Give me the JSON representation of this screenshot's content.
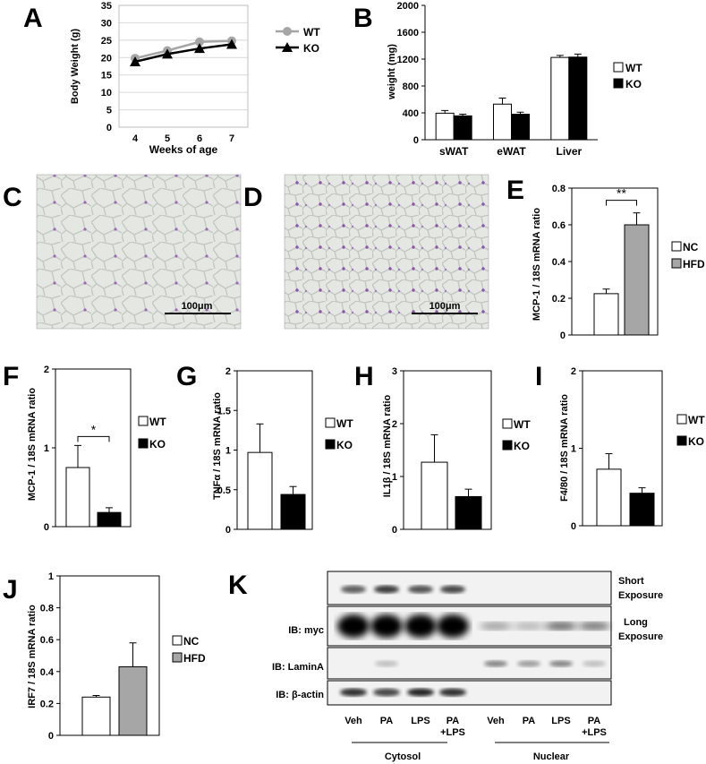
{
  "colors": {
    "wt_line": "#a6a6a6",
    "ko_line": "#000000",
    "wt_bar": "#ffffff",
    "ko_bar": "#000000",
    "hfd_bar": "#a6a6a6",
    "histology_bg": "#e4e7e2",
    "histology_stain": "#8a56a8"
  },
  "panel_labels": {
    "A": "A",
    "B": "B",
    "C": "C",
    "D": "D",
    "E": "E",
    "F": "F",
    "G": "G",
    "H": "H",
    "I": "I",
    "J": "J",
    "K": "K"
  },
  "chart_data": [
    {
      "id": "A",
      "type": "line",
      "x": [
        4,
        5,
        6,
        7
      ],
      "xticks": [
        "4",
        "5",
        "6",
        "7"
      ],
      "xlabel": "Weeks of age",
      "ylabel": "Body Weight (g)",
      "ylim": [
        0,
        35
      ],
      "yticks": [
        "0",
        "5",
        "10",
        "15",
        "20",
        "25",
        "30",
        "35"
      ],
      "grid": true,
      "legend": "right",
      "series": [
        {
          "name": "WT",
          "marker": "circle",
          "color": "#a6a6a6",
          "values": [
            19.8,
            22.0,
            24.5,
            24.8
          ]
        },
        {
          "name": "KO",
          "marker": "triangle",
          "color": "#000000",
          "values": [
            18.8,
            21.0,
            22.6,
            23.8
          ]
        }
      ]
    },
    {
      "id": "B",
      "type": "bar",
      "categories": [
        "sWAT",
        "eWAT",
        "Liver"
      ],
      "ylabel": "weight (mg)",
      "ylim": [
        0,
        2000
      ],
      "yticks": [
        "0",
        "400",
        "800",
        "1200",
        "1600",
        "2000"
      ],
      "legend": "right",
      "series": [
        {
          "name": "WT",
          "color": "#ffffff",
          "values": [
            395,
            530,
            1225
          ],
          "errors": [
            40,
            90,
            30
          ]
        },
        {
          "name": "KO",
          "color": "#000000",
          "values": [
            355,
            380,
            1230
          ],
          "errors": [
            25,
            30,
            45
          ]
        }
      ]
    },
    {
      "id": "E",
      "type": "bar",
      "categories": [
        ""
      ],
      "ylabel": "MCP-1 / 18S mRNA ratio",
      "ylim": [
        0,
        0.8
      ],
      "yticks": [
        "0",
        "0.2",
        "0.4",
        "0.6",
        "0.8"
      ],
      "significance": "**",
      "legend": "right",
      "series": [
        {
          "name": "NC",
          "color": "#ffffff",
          "values": [
            0.225
          ],
          "errors": [
            0.025
          ]
        },
        {
          "name": "HFD",
          "color": "#a6a6a6",
          "values": [
            0.6
          ],
          "errors": [
            0.065
          ]
        }
      ]
    },
    {
      "id": "F",
      "type": "bar",
      "categories": [
        ""
      ],
      "ylabel": "MCP-1 / 18S mRNA ratio",
      "ylim": [
        0,
        2
      ],
      "yticks": [
        "0",
        "1",
        "2"
      ],
      "significance": "*",
      "legend": "right",
      "series": [
        {
          "name": "WT",
          "color": "#ffffff",
          "values": [
            0.75
          ],
          "errors": [
            0.28
          ]
        },
        {
          "name": "KO",
          "color": "#000000",
          "values": [
            0.18
          ],
          "errors": [
            0.06
          ]
        }
      ]
    },
    {
      "id": "G",
      "type": "bar",
      "categories": [
        ""
      ],
      "ylabel": "TNFα / 18S mRNA ratio",
      "ylim": [
        0,
        2
      ],
      "yticks": [
        "0",
        "0.5",
        "1",
        "1.5",
        "2"
      ],
      "legend": "right",
      "series": [
        {
          "name": "WT",
          "color": "#ffffff",
          "values": [
            0.97
          ],
          "errors": [
            0.36
          ]
        },
        {
          "name": "KO",
          "color": "#000000",
          "values": [
            0.44
          ],
          "errors": [
            0.1
          ]
        }
      ]
    },
    {
      "id": "H",
      "type": "bar",
      "categories": [
        ""
      ],
      "ylabel": "IL1β / 18S mRNA ratio",
      "ylim": [
        0,
        3
      ],
      "yticks": [
        "0",
        "1",
        "2",
        "3"
      ],
      "legend": "right",
      "series": [
        {
          "name": "WT",
          "color": "#ffffff",
          "values": [
            1.27
          ],
          "errors": [
            0.52
          ]
        },
        {
          "name": "KO",
          "color": "#000000",
          "values": [
            0.62
          ],
          "errors": [
            0.14
          ]
        }
      ]
    },
    {
      "id": "I",
      "type": "bar",
      "categories": [
        ""
      ],
      "ylabel": "F4/80 / 18S mRNA ratio",
      "ylim": [
        0,
        2
      ],
      "yticks": [
        "0",
        "1",
        "2"
      ],
      "legend": "right",
      "series": [
        {
          "name": "WT",
          "color": "#ffffff",
          "values": [
            0.73
          ],
          "errors": [
            0.2
          ]
        },
        {
          "name": "KO",
          "color": "#000000",
          "values": [
            0.42
          ],
          "errors": [
            0.07
          ]
        }
      ]
    },
    {
      "id": "J",
      "type": "bar",
      "categories": [
        ""
      ],
      "ylabel": "IRF7 / 18S mRNA ratio",
      "ylim": [
        0,
        1
      ],
      "yticks": [
        "0",
        "0.2",
        "0.4",
        "0.6",
        "0.8",
        "1"
      ],
      "legend": "right",
      "series": [
        {
          "name": "NC",
          "color": "#ffffff",
          "values": [
            0.24
          ],
          "errors": [
            0.01
          ]
        },
        {
          "name": "HFD",
          "color": "#a6a6a6",
          "values": [
            0.43
          ],
          "errors": [
            0.15
          ]
        }
      ]
    }
  ],
  "histology": {
    "C": {
      "scale_bar": "100μm"
    },
    "D": {
      "scale_bar": "100μm"
    }
  },
  "western": {
    "rows": [
      {
        "label": "IB: myc",
        "right": "Short\nExposure"
      },
      {
        "label": "",
        "right": "Long\nExposure"
      },
      {
        "label": "IB: LaminA",
        "right": ""
      },
      {
        "label": "IB: β-actin",
        "right": ""
      }
    ],
    "right_labels": {
      "short_1": "Short",
      "short_2": "Exposure",
      "long_1": "Long",
      "long_2": "Exposure"
    },
    "row_labels": {
      "myc": "IB: myc",
      "lamin": "IB: LaminA",
      "actin": "IB: β-actin"
    },
    "lanes": [
      {
        "line1": "Veh",
        "line2": ""
      },
      {
        "line1": "PA",
        "line2": ""
      },
      {
        "line1": "LPS",
        "line2": ""
      },
      {
        "line1": "PA",
        "line2": "+LPS"
      },
      {
        "line1": "Veh",
        "line2": ""
      },
      {
        "line1": "PA",
        "line2": ""
      },
      {
        "line1": "LPS",
        "line2": ""
      },
      {
        "line1": "PA",
        "line2": "+LPS"
      }
    ],
    "groups": {
      "cytosol": "Cytosol",
      "nuclear": "Nuclear"
    },
    "band_intensity": {
      "short": [
        0.6,
        0.75,
        0.65,
        0.7,
        0,
        0,
        0,
        0
      ],
      "long": [
        1,
        1,
        1,
        1,
        0.35,
        0.25,
        0.6,
        0.55
      ],
      "lamin": [
        0,
        0.2,
        0,
        0,
        0.45,
        0.35,
        0.45,
        0.2
      ],
      "actin": [
        0.8,
        0.7,
        0.85,
        0.8,
        0,
        0,
        0,
        0
      ]
    }
  }
}
